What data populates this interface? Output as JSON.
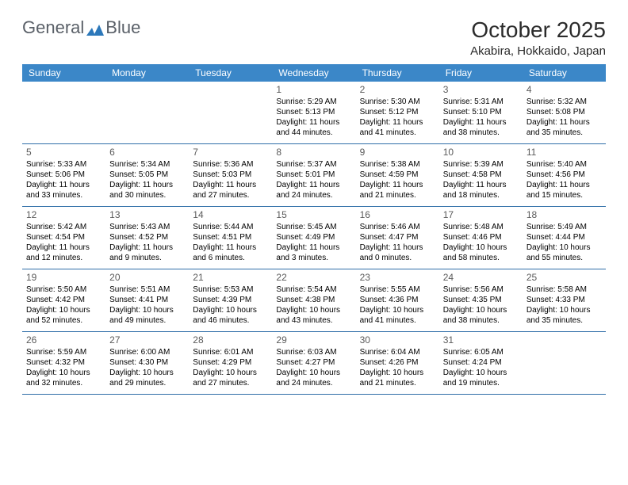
{
  "brand": {
    "part1": "General",
    "part2": "Blue"
  },
  "title": "October 2025",
  "location": "Akabira, Hokkaido, Japan",
  "colors": {
    "header_bg": "#3b87c8",
    "header_text": "#ffffff",
    "week_border": "#2f6ea8",
    "logo_blue": "#2c78ba",
    "text": "#000000",
    "page_bg": "#ffffff"
  },
  "weekdays": [
    "Sunday",
    "Monday",
    "Tuesday",
    "Wednesday",
    "Thursday",
    "Friday",
    "Saturday"
  ],
  "weeks": [
    [
      null,
      null,
      null,
      {
        "n": "1",
        "sr": "5:29 AM",
        "ss": "5:13 PM",
        "dl": "11 hours and 44 minutes."
      },
      {
        "n": "2",
        "sr": "5:30 AM",
        "ss": "5:12 PM",
        "dl": "11 hours and 41 minutes."
      },
      {
        "n": "3",
        "sr": "5:31 AM",
        "ss": "5:10 PM",
        "dl": "11 hours and 38 minutes."
      },
      {
        "n": "4",
        "sr": "5:32 AM",
        "ss": "5:08 PM",
        "dl": "11 hours and 35 minutes."
      }
    ],
    [
      {
        "n": "5",
        "sr": "5:33 AM",
        "ss": "5:06 PM",
        "dl": "11 hours and 33 minutes."
      },
      {
        "n": "6",
        "sr": "5:34 AM",
        "ss": "5:05 PM",
        "dl": "11 hours and 30 minutes."
      },
      {
        "n": "7",
        "sr": "5:36 AM",
        "ss": "5:03 PM",
        "dl": "11 hours and 27 minutes."
      },
      {
        "n": "8",
        "sr": "5:37 AM",
        "ss": "5:01 PM",
        "dl": "11 hours and 24 minutes."
      },
      {
        "n": "9",
        "sr": "5:38 AM",
        "ss": "4:59 PM",
        "dl": "11 hours and 21 minutes."
      },
      {
        "n": "10",
        "sr": "5:39 AM",
        "ss": "4:58 PM",
        "dl": "11 hours and 18 minutes."
      },
      {
        "n": "11",
        "sr": "5:40 AM",
        "ss": "4:56 PM",
        "dl": "11 hours and 15 minutes."
      }
    ],
    [
      {
        "n": "12",
        "sr": "5:42 AM",
        "ss": "4:54 PM",
        "dl": "11 hours and 12 minutes."
      },
      {
        "n": "13",
        "sr": "5:43 AM",
        "ss": "4:52 PM",
        "dl": "11 hours and 9 minutes."
      },
      {
        "n": "14",
        "sr": "5:44 AM",
        "ss": "4:51 PM",
        "dl": "11 hours and 6 minutes."
      },
      {
        "n": "15",
        "sr": "5:45 AM",
        "ss": "4:49 PM",
        "dl": "11 hours and 3 minutes."
      },
      {
        "n": "16",
        "sr": "5:46 AM",
        "ss": "4:47 PM",
        "dl": "11 hours and 0 minutes."
      },
      {
        "n": "17",
        "sr": "5:48 AM",
        "ss": "4:46 PM",
        "dl": "10 hours and 58 minutes."
      },
      {
        "n": "18",
        "sr": "5:49 AM",
        "ss": "4:44 PM",
        "dl": "10 hours and 55 minutes."
      }
    ],
    [
      {
        "n": "19",
        "sr": "5:50 AM",
        "ss": "4:42 PM",
        "dl": "10 hours and 52 minutes."
      },
      {
        "n": "20",
        "sr": "5:51 AM",
        "ss": "4:41 PM",
        "dl": "10 hours and 49 minutes."
      },
      {
        "n": "21",
        "sr": "5:53 AM",
        "ss": "4:39 PM",
        "dl": "10 hours and 46 minutes."
      },
      {
        "n": "22",
        "sr": "5:54 AM",
        "ss": "4:38 PM",
        "dl": "10 hours and 43 minutes."
      },
      {
        "n": "23",
        "sr": "5:55 AM",
        "ss": "4:36 PM",
        "dl": "10 hours and 41 minutes."
      },
      {
        "n": "24",
        "sr": "5:56 AM",
        "ss": "4:35 PM",
        "dl": "10 hours and 38 minutes."
      },
      {
        "n": "25",
        "sr": "5:58 AM",
        "ss": "4:33 PM",
        "dl": "10 hours and 35 minutes."
      }
    ],
    [
      {
        "n": "26",
        "sr": "5:59 AM",
        "ss": "4:32 PM",
        "dl": "10 hours and 32 minutes."
      },
      {
        "n": "27",
        "sr": "6:00 AM",
        "ss": "4:30 PM",
        "dl": "10 hours and 29 minutes."
      },
      {
        "n": "28",
        "sr": "6:01 AM",
        "ss": "4:29 PM",
        "dl": "10 hours and 27 minutes."
      },
      {
        "n": "29",
        "sr": "6:03 AM",
        "ss": "4:27 PM",
        "dl": "10 hours and 24 minutes."
      },
      {
        "n": "30",
        "sr": "6:04 AM",
        "ss": "4:26 PM",
        "dl": "10 hours and 21 minutes."
      },
      {
        "n": "31",
        "sr": "6:05 AM",
        "ss": "4:24 PM",
        "dl": "10 hours and 19 minutes."
      },
      null
    ]
  ],
  "labels": {
    "sunrise": "Sunrise:",
    "sunset": "Sunset:",
    "daylight": "Daylight:"
  }
}
